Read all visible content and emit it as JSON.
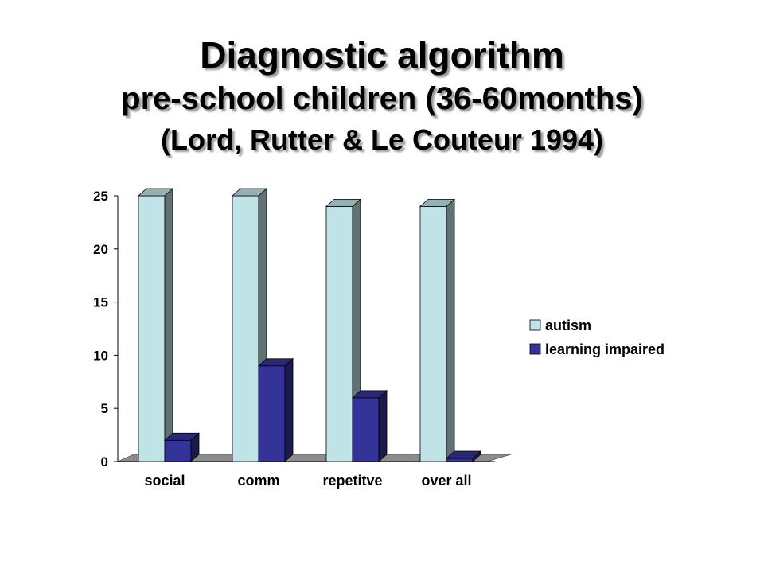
{
  "title": {
    "line1": "Diagnostic algorithm",
    "line2": "pre-school children (36-60months)",
    "line3": "(Lord, Rutter & Le Couteur 1994)"
  },
  "colors": {
    "autism": "#bfe3e6",
    "learning_impaired": "#333399",
    "floor": "#8c8c8c"
  },
  "chart_data": {
    "type": "bar",
    "categories": [
      "social",
      "comm",
      "repetitve",
      "over all"
    ],
    "series": [
      {
        "name": "autism",
        "values": [
          25,
          25,
          24,
          24
        ]
      },
      {
        "name": "learning impaired",
        "values": [
          2,
          9,
          6,
          0.3
        ]
      }
    ],
    "ylim": [
      0,
      25
    ],
    "yticks": [
      0,
      5,
      10,
      15,
      20,
      25
    ],
    "grid": false,
    "legend": "right",
    "style": "3d"
  }
}
